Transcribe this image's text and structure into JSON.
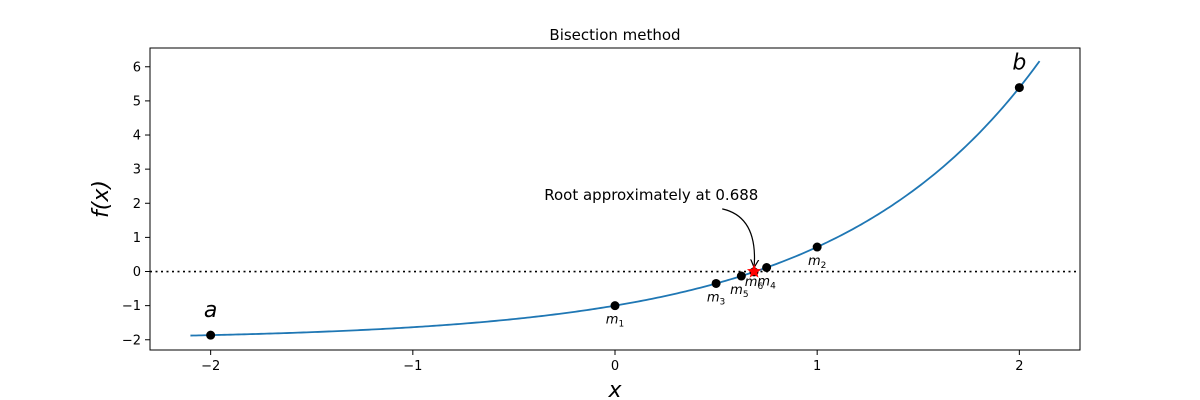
{
  "chart_data": {
    "type": "line",
    "title": "Bisection method",
    "xlabel": "x",
    "ylabel": "f(x)",
    "xlim": [
      -2.3,
      2.3
    ],
    "ylim": [
      -2.3,
      6.55
    ],
    "xticks": [
      -2,
      -1,
      0,
      1,
      2
    ],
    "xtick_labels": [
      "−2",
      "−1",
      "0",
      "1",
      "2"
    ],
    "yticks": [
      -2,
      -1,
      0,
      1,
      2,
      3,
      4,
      5,
      6
    ],
    "ytick_labels": [
      "−2",
      "−1",
      "0",
      "1",
      "2",
      "3",
      "4",
      "5",
      "6"
    ],
    "curve": {
      "function": "exp(x) - 2",
      "x_range": [
        -2.1,
        2.1
      ],
      "color": "#1f77b4"
    },
    "zero_line": {
      "y": 0,
      "style": "dotted",
      "color": "#000000"
    },
    "endpoints": [
      {
        "label": "a",
        "x": -2,
        "y": -1.865
      },
      {
        "label": "b",
        "x": 2,
        "y": 5.389
      }
    ],
    "midpoints": [
      {
        "label": "m",
        "sub": "1",
        "x": 0,
        "y": -1.0
      },
      {
        "label": "m",
        "sub": "2",
        "x": 1,
        "y": 0.718
      },
      {
        "label": "m",
        "sub": "3",
        "x": 0.5,
        "y": -0.351
      },
      {
        "label": "m",
        "sub": "4",
        "x": 0.75,
        "y": 0.117
      },
      {
        "label": "m",
        "sub": "5",
        "x": 0.625,
        "y": -0.132
      },
      {
        "label": "m",
        "sub": "6",
        "x": 0.6875,
        "y": -0.011
      }
    ],
    "root": {
      "x": 0.688,
      "y": 0,
      "marker": "star",
      "color": "#ff0000"
    },
    "annotation": {
      "text": "Root approximately at 0.688",
      "text_x": -0.35,
      "text_y": 2.1
    },
    "marker_color": "#000000"
  }
}
